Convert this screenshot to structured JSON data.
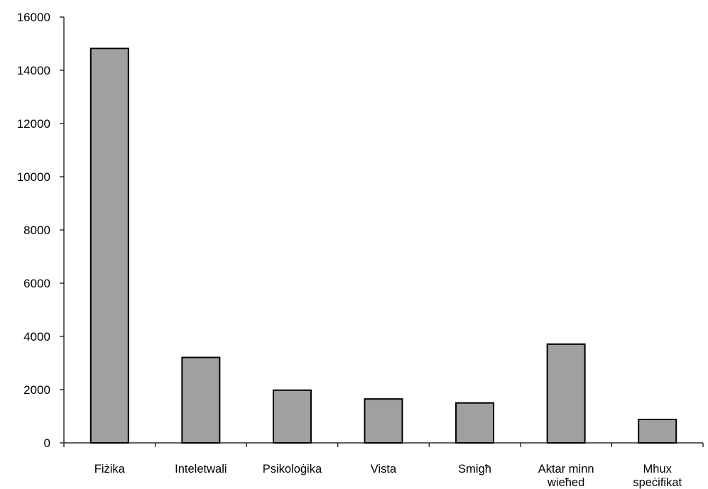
{
  "chart_data": {
    "type": "bar",
    "categories": [
      [
        "Fiżika"
      ],
      [
        "Inteletwali"
      ],
      [
        "Psikoloġika"
      ],
      [
        "Vista"
      ],
      [
        "Smigħ"
      ],
      [
        "Aktar minn",
        "wieħed"
      ],
      [
        "Mhux",
        "speċifikat"
      ]
    ],
    "values": [
      14820,
      3210,
      1980,
      1650,
      1500,
      3710,
      880
    ],
    "title": "",
    "xlabel": "",
    "ylabel": "",
    "ylim": [
      0,
      16000
    ],
    "yticks": [
      "0",
      "2000",
      "4000",
      "6000",
      "8000",
      "10000",
      "12000",
      "14000",
      "16000"
    ],
    "grid": false,
    "bar_color": "#a0a0a0",
    "border_color": "#000000"
  }
}
